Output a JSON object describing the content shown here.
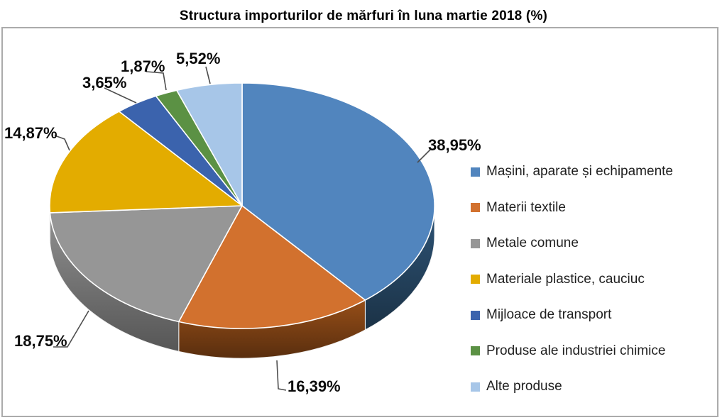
{
  "title": "Structura importurilor de mărfuri în luna martie 2018 (%)",
  "chart_data": {
    "type": "pie",
    "is_3d": true,
    "title": "Structura importurilor de mărfuri în luna martie 2018 (%)",
    "start_angle_deg": 0,
    "direction": "clockwise",
    "categories": [
      "Mașini, aparate și echipamente",
      "Materii textile",
      "Metale comune",
      "Materiale plastice, cauciuc",
      "Mijloace de transport",
      "Produse ale industriei chimice",
      "Alte produse"
    ],
    "values": [
      38.95,
      16.39,
      18.75,
      14.87,
      3.65,
      1.87,
      5.52
    ],
    "labels": [
      "38,95%",
      "16,39%",
      "18,75%",
      "14,87%",
      "3,65%",
      "1,87%",
      "5,52%"
    ],
    "colors": [
      "#5185BE",
      "#D2712E",
      "#969696",
      "#E3AC00",
      "#3B63AD",
      "#5B9144",
      "#A7C6E8"
    ],
    "side_colors": [
      "#223E58",
      "#6F3A12",
      "#6B6B6B",
      "#8A6900",
      "#26407A",
      "#3B6128",
      "#7595BE"
    ],
    "legend_position": "right",
    "background_color": "#FFFFFF",
    "border_color": "#ABABAB",
    "label_color": "#000000",
    "legend_text_color": "#1F1F1F"
  }
}
